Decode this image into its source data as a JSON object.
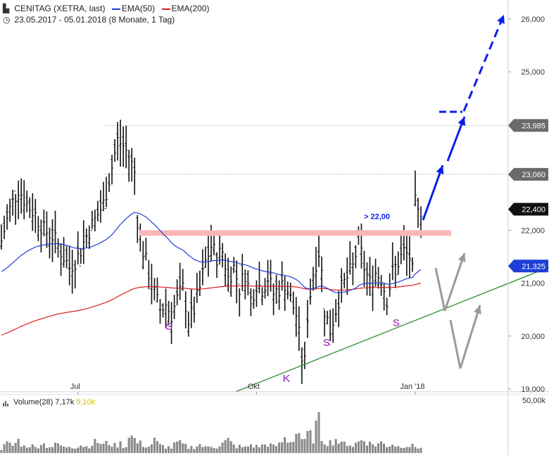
{
  "header": {
    "title": "CENITAG (XETRA, last)",
    "ema50_label": "EMA(50)",
    "ema200_label": "EMA(200)",
    "period": "23.05.2017 - 05.01.2018",
    "interval": "(8 Monate, 1 Tag)",
    "icon": "chart-bars-icon",
    "clock_icon": "clock-icon"
  },
  "colors": {
    "ema50": "#1f3fd6",
    "ema200": "#d61f1f",
    "arrows": "#0a1fe6",
    "scenario": "#9a9a9a",
    "support_zone": "#f8b7b7",
    "trendline": "#2e8b2e",
    "annotation": "#b25cc8",
    "last_price_box": "#111111",
    "ema_box": "#1f3fd6",
    "level_box": "#6a6a6a"
  },
  "volume": {
    "label": "Volume(28)",
    "value": "7,17k",
    "avg": "9,10k",
    "axis_label": "50,00k"
  },
  "chart_data": {
    "type": "ohlc",
    "title": "CENITAG (XETRA, last)",
    "x_range": [
      "2017-05-23",
      "2018-01-05"
    ],
    "x_ticks": [
      "Jul",
      "Okt",
      "Jan '18"
    ],
    "ylim": [
      19.0,
      26.5
    ],
    "y_ticks": [
      {
        "value": 19.0,
        "label": "19,000"
      },
      {
        "value": 20.0,
        "label": "20,000"
      },
      {
        "value": 21.0,
        "label": "21,000"
      },
      {
        "value": 22.0,
        "label": "22,000"
      },
      {
        "value": 25.0,
        "label": "25,000"
      },
      {
        "value": 26.0,
        "label": "26,000"
      }
    ],
    "price_tags": [
      {
        "value": 23.985,
        "label": "23,985",
        "kind": "level"
      },
      {
        "value": 23.06,
        "label": "23,060",
        "kind": "level"
      },
      {
        "value": 22.4,
        "label": "22,400",
        "kind": "last"
      },
      {
        "value": 21.325,
        "label": "21,325",
        "kind": "ema50"
      }
    ],
    "horizontal_levels": [
      23.985,
      23.06
    ],
    "support_zone": {
      "value": 21.95,
      "label": "> 22,00"
    },
    "patterns": [
      "S",
      "S",
      "S",
      "K"
    ],
    "series": [
      {
        "name": "EMA(50)",
        "key": "ema50"
      },
      {
        "name": "EMA(200)",
        "key": "ema200"
      }
    ],
    "price_path": [
      [
        0,
        21.8
      ],
      [
        3,
        22.4
      ],
      [
        6,
        22.8
      ],
      [
        9,
        22.5
      ],
      [
        12,
        22.3
      ],
      [
        15,
        22.0
      ],
      [
        18,
        21.9
      ],
      [
        21,
        21.6
      ],
      [
        24,
        21.3
      ],
      [
        27,
        21.5
      ],
      [
        30,
        21.9
      ],
      [
        33,
        22.2
      ],
      [
        36,
        22.5
      ],
      [
        39,
        23.2
      ],
      [
        41,
        23.7
      ],
      [
        43,
        23.6
      ],
      [
        45,
        23.4
      ],
      [
        47,
        23.1
      ],
      [
        48,
        22.2
      ],
      [
        50,
        21.6
      ],
      [
        52,
        21.2
      ],
      [
        54,
        20.8
      ],
      [
        56,
        20.5
      ],
      [
        58,
        20.6
      ],
      [
        60,
        20.4
      ],
      [
        62,
        20.7
      ],
      [
        64,
        20.9
      ],
      [
        66,
        20.3
      ],
      [
        68,
        20.5
      ],
      [
        70,
        20.9
      ],
      [
        72,
        21.4
      ],
      [
        74,
        21.7
      ],
      [
        76,
        21.5
      ],
      [
        78,
        21.6
      ],
      [
        80,
        21.1
      ],
      [
        82,
        21.3
      ],
      [
        84,
        20.9
      ],
      [
        86,
        21.2
      ],
      [
        88,
        20.7
      ],
      [
        90,
        21.0
      ],
      [
        92,
        20.9
      ],
      [
        94,
        21.1
      ],
      [
        96,
        20.8
      ],
      [
        98,
        20.9
      ],
      [
        100,
        21.0
      ],
      [
        102,
        20.7
      ],
      [
        104,
        20.4
      ],
      [
        105,
        20.0
      ],
      [
        106,
        19.6
      ],
      [
        107,
        19.5
      ],
      [
        108,
        20.4
      ],
      [
        110,
        21.2
      ],
      [
        112,
        21.6
      ],
      [
        113,
        21.2
      ],
      [
        114,
        20.5
      ],
      [
        116,
        20.1
      ],
      [
        118,
        20.5
      ],
      [
        120,
        20.9
      ],
      [
        122,
        21.1
      ],
      [
        124,
        21.3
      ],
      [
        126,
        21.8
      ],
      [
        128,
        21.3
      ],
      [
        130,
        21.0
      ],
      [
        132,
        21.2
      ],
      [
        134,
        21.1
      ],
      [
        136,
        20.7
      ],
      [
        138,
        21.2
      ],
      [
        140,
        21.4
      ],
      [
        142,
        21.6
      ],
      [
        144,
        21.5
      ],
      [
        145,
        21.2
      ],
      [
        146,
        22.5
      ],
      [
        147,
        22.3
      ],
      [
        148,
        22.4
      ]
    ],
    "volume_path": [
      [
        0,
        4
      ],
      [
        2,
        9
      ],
      [
        4,
        7
      ],
      [
        6,
        12
      ],
      [
        8,
        6
      ],
      [
        10,
        8
      ],
      [
        12,
        5
      ],
      [
        14,
        10
      ],
      [
        16,
        7
      ],
      [
        18,
        6
      ],
      [
        20,
        9
      ],
      [
        22,
        5
      ],
      [
        24,
        7
      ],
      [
        26,
        6
      ],
      [
        28,
        8
      ],
      [
        30,
        6
      ],
      [
        32,
        9
      ],
      [
        34,
        11
      ],
      [
        36,
        8
      ],
      [
        38,
        10
      ],
      [
        40,
        7
      ],
      [
        42,
        9
      ],
      [
        44,
        6
      ],
      [
        45,
        22
      ],
      [
        46,
        16
      ],
      [
        47,
        13
      ],
      [
        48,
        10
      ],
      [
        50,
        8
      ],
      [
        52,
        6
      ],
      [
        54,
        12
      ],
      [
        56,
        7
      ],
      [
        58,
        6
      ],
      [
        60,
        5
      ],
      [
        62,
        10
      ],
      [
        64,
        8
      ],
      [
        66,
        5
      ],
      [
        68,
        6
      ],
      [
        70,
        8
      ],
      [
        72,
        5
      ],
      [
        74,
        7
      ],
      [
        76,
        6
      ],
      [
        78,
        9
      ],
      [
        80,
        12
      ],
      [
        82,
        7
      ],
      [
        84,
        6
      ],
      [
        86,
        5
      ],
      [
        88,
        8
      ],
      [
        90,
        6
      ],
      [
        92,
        7
      ],
      [
        94,
        9
      ],
      [
        96,
        6
      ],
      [
        98,
        8
      ],
      [
        100,
        14
      ],
      [
        102,
        11
      ],
      [
        104,
        19
      ],
      [
        105,
        21
      ],
      [
        106,
        14
      ],
      [
        107,
        10
      ],
      [
        108,
        18
      ],
      [
        110,
        15
      ],
      [
        111,
        25
      ],
      [
        112,
        29
      ],
      [
        113,
        16
      ],
      [
        114,
        12
      ],
      [
        116,
        10
      ],
      [
        118,
        14
      ],
      [
        120,
        8
      ],
      [
        122,
        10
      ],
      [
        124,
        7
      ],
      [
        126,
        11
      ],
      [
        128,
        14
      ],
      [
        130,
        9
      ],
      [
        132,
        8
      ],
      [
        134,
        10
      ],
      [
        136,
        7
      ],
      [
        138,
        9
      ],
      [
        140,
        6
      ],
      [
        142,
        8
      ],
      [
        144,
        7
      ],
      [
        146,
        6
      ],
      [
        148,
        5
      ]
    ],
    "volume_max": 50.0
  }
}
